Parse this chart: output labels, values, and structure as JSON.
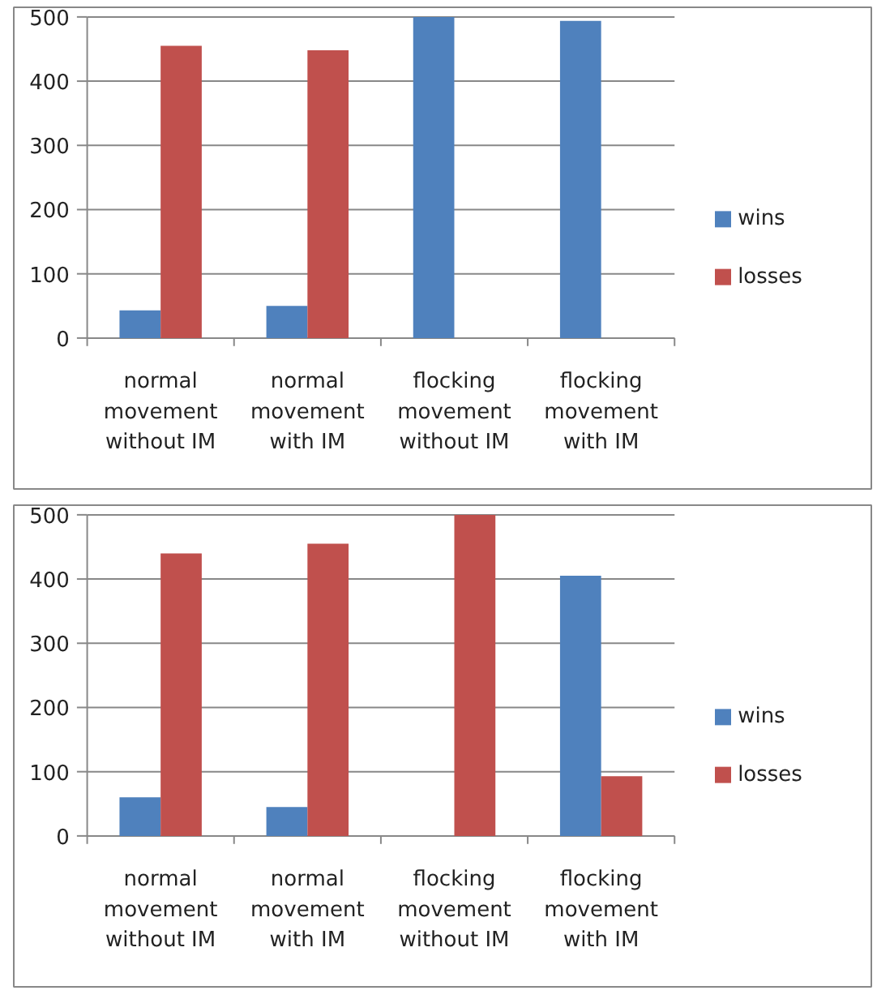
{
  "chart_data": [
    {
      "type": "bar",
      "categories": [
        "normal\nmovement\nwithout IM",
        "normal\nmovement\nwith IM",
        "flocking\nmovement\nwithout IM",
        "flocking\nmovement\nwith IM"
      ],
      "series": [
        {
          "name": "wins",
          "color": "#4f81bd",
          "values": [
            43,
            50,
            500,
            494
          ]
        },
        {
          "name": "losses",
          "color": "#c0504d",
          "values": [
            455,
            448,
            0,
            0
          ]
        }
      ],
      "ylim": [
        0,
        500
      ],
      "yticks": [
        0,
        100,
        200,
        300,
        400,
        500
      ],
      "grid": "y",
      "legend": "right"
    },
    {
      "type": "bar",
      "categories": [
        "normal\nmovement\nwithout IM",
        "normal\nmovement\nwith IM",
        "flocking\nmovement\nwithout IM",
        "flocking\nmovement\nwith IM"
      ],
      "series": [
        {
          "name": "wins",
          "color": "#4f81bd",
          "values": [
            60,
            45,
            0,
            405
          ]
        },
        {
          "name": "losses",
          "color": "#c0504d",
          "values": [
            440,
            455,
            500,
            93
          ]
        }
      ],
      "ylim": [
        0,
        500
      ],
      "yticks": [
        0,
        100,
        200,
        300,
        400,
        500
      ],
      "grid": "y",
      "legend": "right"
    }
  ]
}
